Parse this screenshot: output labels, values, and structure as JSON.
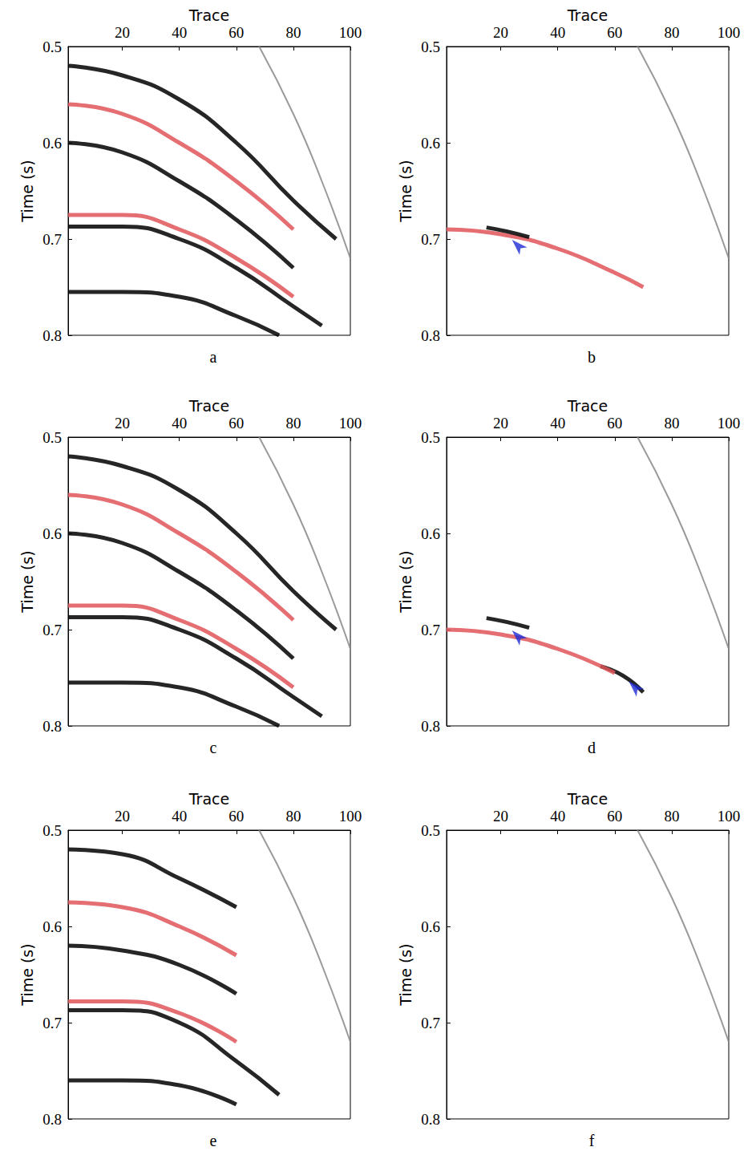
{
  "chart_data": [
    {
      "type": "line",
      "title": "a",
      "x_label": "Trace",
      "y_label": "Time (s)",
      "xlim": [
        1,
        100
      ],
      "ylim": [
        0.5,
        0.8
      ],
      "xticks": [
        20,
        40,
        60,
        80,
        100
      ],
      "yticks": [
        0.5,
        0.6,
        0.7,
        0.8
      ],
      "series": [
        {
          "color": "#000000",
          "line_style": "solid",
          "x": [
            1,
            20,
            40,
            60,
            80,
            95
          ],
          "values": [
            0.52,
            0.53,
            0.555,
            0.6,
            0.66,
            0.7
          ]
        },
        {
          "color": "#e0555a",
          "line_style": "solid",
          "x": [
            1,
            20,
            40,
            60,
            80
          ],
          "values": [
            0.56,
            0.57,
            0.6,
            0.64,
            0.69
          ]
        },
        {
          "color": "#000000",
          "line_style": "solid",
          "x": [
            1,
            20,
            40,
            60,
            80
          ],
          "values": [
            0.6,
            0.61,
            0.64,
            0.68,
            0.73
          ]
        },
        {
          "color": "#e0555a",
          "line_style": "solid",
          "x": [
            1,
            20,
            40,
            60,
            80
          ],
          "values": [
            0.675,
            0.675,
            0.69,
            0.72,
            0.76
          ]
        },
        {
          "color": "#000000",
          "line_style": "solid",
          "x": [
            1,
            20,
            40,
            60,
            80,
            90
          ],
          "values": [
            0.687,
            0.687,
            0.7,
            0.73,
            0.77,
            0.79
          ]
        },
        {
          "color": "#000000",
          "line_style": "solid",
          "x": [
            1,
            20,
            40,
            60,
            75
          ],
          "values": [
            0.755,
            0.755,
            0.76,
            0.78,
            0.8
          ]
        },
        {
          "color": "#888888",
          "line_style": "solid",
          "x": [
            68,
            80,
            90,
            100
          ],
          "values": [
            0.5,
            0.57,
            0.64,
            0.72
          ]
        }
      ]
    },
    {
      "type": "line",
      "title": "b",
      "x_label": "Trace",
      "y_label": "Time (s)",
      "xlim": [
        1,
        100
      ],
      "ylim": [
        0.5,
        0.8
      ],
      "xticks": [
        20,
        40,
        60,
        80,
        100
      ],
      "yticks": [
        0.5,
        0.6,
        0.7,
        0.8
      ],
      "series": [
        {
          "color": "#e0555a",
          "line_style": "solid",
          "x": [
            1,
            20,
            40,
            60,
            70
          ],
          "values": [
            0.69,
            0.695,
            0.71,
            0.735,
            0.75
          ]
        },
        {
          "color": "#000000",
          "line_style": "solid",
          "x": [
            15,
            22,
            30
          ],
          "values": [
            0.688,
            0.692,
            0.698
          ]
        },
        {
          "color": "#888888",
          "line_style": "solid",
          "x": [
            68,
            80,
            90,
            100
          ],
          "values": [
            0.5,
            0.57,
            0.64,
            0.72
          ]
        },
        {
          "type": "scatter",
          "marker": "arrow",
          "color": "#1f2bd6",
          "x": [
            22
          ],
          "values": [
            0.695
          ]
        }
      ]
    },
    {
      "type": "line",
      "title": "c",
      "x_label": "Trace",
      "y_label": "Time (s)",
      "xlim": [
        1,
        100
      ],
      "ylim": [
        0.5,
        0.8
      ],
      "xticks": [
        20,
        40,
        60,
        80,
        100
      ],
      "yticks": [
        0.5,
        0.6,
        0.7,
        0.8
      ],
      "series": [
        {
          "color": "#000000",
          "line_style": "solid",
          "x": [
            1,
            20,
            40,
            60,
            80,
            95
          ],
          "values": [
            0.52,
            0.53,
            0.555,
            0.6,
            0.66,
            0.7
          ]
        },
        {
          "color": "#e0555a",
          "line_style": "solid",
          "x": [
            1,
            20,
            40,
            60,
            80
          ],
          "values": [
            0.56,
            0.57,
            0.6,
            0.64,
            0.69
          ]
        },
        {
          "color": "#000000",
          "line_style": "solid",
          "x": [
            1,
            20,
            40,
            60,
            80
          ],
          "values": [
            0.6,
            0.61,
            0.64,
            0.68,
            0.73
          ]
        },
        {
          "color": "#e0555a",
          "line_style": "solid",
          "x": [
            1,
            20,
            40,
            60,
            80
          ],
          "values": [
            0.675,
            0.675,
            0.69,
            0.72,
            0.76
          ]
        },
        {
          "color": "#000000",
          "line_style": "solid",
          "x": [
            1,
            20,
            40,
            60,
            80,
            90
          ],
          "values": [
            0.687,
            0.687,
            0.7,
            0.73,
            0.77,
            0.79
          ]
        },
        {
          "color": "#000000",
          "line_style": "solid",
          "x": [
            1,
            20,
            40,
            60,
            75
          ],
          "values": [
            0.755,
            0.755,
            0.76,
            0.78,
            0.8
          ]
        },
        {
          "color": "#888888",
          "line_style": "solid",
          "x": [
            68,
            80,
            90,
            100
          ],
          "values": [
            0.5,
            0.57,
            0.64,
            0.72
          ]
        }
      ]
    },
    {
      "type": "line",
      "title": "d",
      "x_label": "Trace",
      "y_label": "Time (s)",
      "xlim": [
        1,
        100
      ],
      "ylim": [
        0.5,
        0.8
      ],
      "xticks": [
        20,
        40,
        60,
        80,
        100
      ],
      "yticks": [
        0.5,
        0.6,
        0.7,
        0.8
      ],
      "series": [
        {
          "color": "#000000",
          "line_style": "solid",
          "x": [
            15,
            22,
            30
          ],
          "values": [
            0.688,
            0.692,
            0.698
          ]
        },
        {
          "color": "#000000",
          "line_style": "solid",
          "x": [
            55,
            63,
            70
          ],
          "values": [
            0.738,
            0.748,
            0.765
          ]
        },
        {
          "color": "#e0555a",
          "line_style": "solid",
          "x": [
            1,
            20,
            40,
            60
          ],
          "values": [
            0.7,
            0.705,
            0.72,
            0.745
          ]
        },
        {
          "color": "#888888",
          "line_style": "solid",
          "x": [
            68,
            80,
            90,
            100
          ],
          "values": [
            0.5,
            0.57,
            0.64,
            0.72
          ]
        },
        {
          "type": "scatter",
          "marker": "arrow",
          "color": "#1f2bd6",
          "x": [
            22,
            63
          ],
          "values": [
            0.695,
            0.748
          ]
        }
      ]
    },
    {
      "type": "line",
      "title": "e",
      "x_label": "Trace",
      "y_label": "Time (s)",
      "xlim": [
        1,
        100
      ],
      "ylim": [
        0.5,
        0.8
      ],
      "xticks": [
        20,
        40,
        60,
        80,
        100
      ],
      "yticks": [
        0.5,
        0.6,
        0.7,
        0.8
      ],
      "series": [
        {
          "color": "#000000",
          "line_style": "solid",
          "x": [
            1,
            20,
            40,
            60
          ],
          "values": [
            0.52,
            0.525,
            0.55,
            0.58
          ]
        },
        {
          "color": "#e0555a",
          "line_style": "solid",
          "x": [
            1,
            20,
            40,
            60
          ],
          "values": [
            0.575,
            0.58,
            0.6,
            0.63
          ]
        },
        {
          "color": "#000000",
          "line_style": "solid",
          "x": [
            1,
            20,
            40,
            60
          ],
          "values": [
            0.62,
            0.625,
            0.64,
            0.67
          ]
        },
        {
          "color": "#e0555a",
          "line_style": "solid",
          "x": [
            1,
            20,
            40,
            60
          ],
          "values": [
            0.678,
            0.678,
            0.69,
            0.72
          ]
        },
        {
          "color": "#000000",
          "line_style": "solid",
          "x": [
            1,
            20,
            40,
            60,
            75
          ],
          "values": [
            0.687,
            0.687,
            0.7,
            0.74,
            0.775
          ]
        },
        {
          "color": "#000000",
          "line_style": "solid",
          "x": [
            1,
            20,
            40,
            60
          ],
          "values": [
            0.76,
            0.76,
            0.765,
            0.785
          ]
        },
        {
          "color": "#888888",
          "line_style": "solid",
          "x": [
            68,
            80,
            90,
            100
          ],
          "values": [
            0.5,
            0.57,
            0.64,
            0.72
          ]
        }
      ]
    },
    {
      "type": "line",
      "title": "f",
      "x_label": "Trace",
      "y_label": "Time (s)",
      "xlim": [
        1,
        100
      ],
      "ylim": [
        0.5,
        0.8
      ],
      "xticks": [
        20,
        40,
        60,
        80,
        100
      ],
      "yticks": [
        0.5,
        0.6,
        0.7,
        0.8
      ],
      "series": [
        {
          "color": "#888888",
          "line_style": "solid",
          "x": [
            68,
            80,
            90,
            100
          ],
          "values": [
            0.5,
            0.57,
            0.64,
            0.72
          ]
        }
      ]
    }
  ]
}
